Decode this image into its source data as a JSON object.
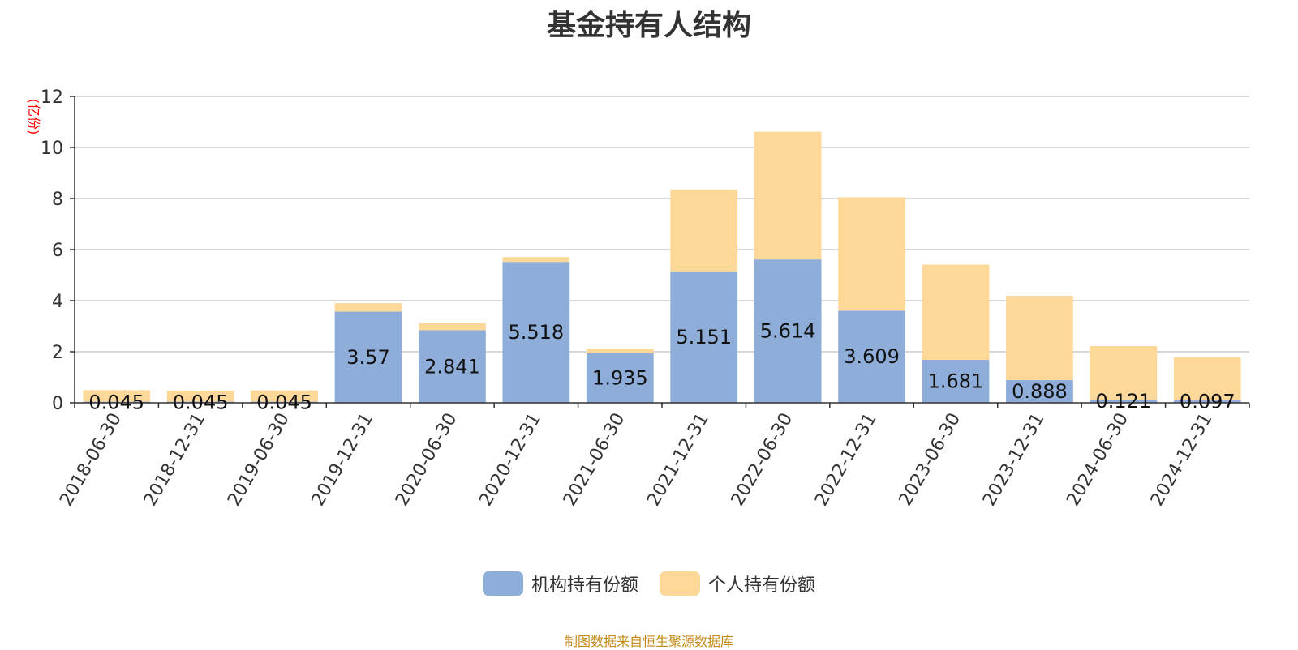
{
  "title": "基金持有人结构",
  "source": "制图数据来自恒生聚源数据库",
  "colors": {
    "institutional": "#8eadd9",
    "individual": "#fdd898",
    "unit_label": "#ff0000"
  },
  "chart_data": {
    "type": "bar",
    "stacked": true,
    "title": "基金持有人结构",
    "ylabel": "(亿份)",
    "ylim": [
      0,
      12
    ],
    "yticks": [
      0,
      2,
      4,
      6,
      8,
      10,
      12
    ],
    "grid": true,
    "legend_position": "bottom-center",
    "categories": [
      "2018-06-30",
      "2018-12-31",
      "2019-06-30",
      "2019-12-31",
      "2020-06-30",
      "2020-12-31",
      "2021-06-30",
      "2021-12-31",
      "2022-06-30",
      "2022-12-31",
      "2023-06-30",
      "2023-12-31",
      "2024-06-30",
      "2024-12-31"
    ],
    "series": [
      {
        "name": "机构持有份额",
        "values": [
          0.045,
          0.045,
          0.045,
          3.57,
          2.841,
          5.518,
          1.935,
          5.151,
          5.614,
          3.609,
          1.681,
          0.888,
          0.121,
          0.097
        ],
        "labels": [
          "0.045",
          "0.045",
          "0.045",
          "3.57",
          "2.841",
          "5.518",
          "1.935",
          "5.151",
          "5.614",
          "3.609",
          "1.681",
          "0.888",
          "0.121",
          "0.097"
        ]
      },
      {
        "name": "个人持有份额",
        "values": [
          0.45,
          0.43,
          0.44,
          0.33,
          0.27,
          0.19,
          0.19,
          3.2,
          5.0,
          4.44,
          3.73,
          3.3,
          2.1,
          1.7
        ]
      }
    ]
  }
}
